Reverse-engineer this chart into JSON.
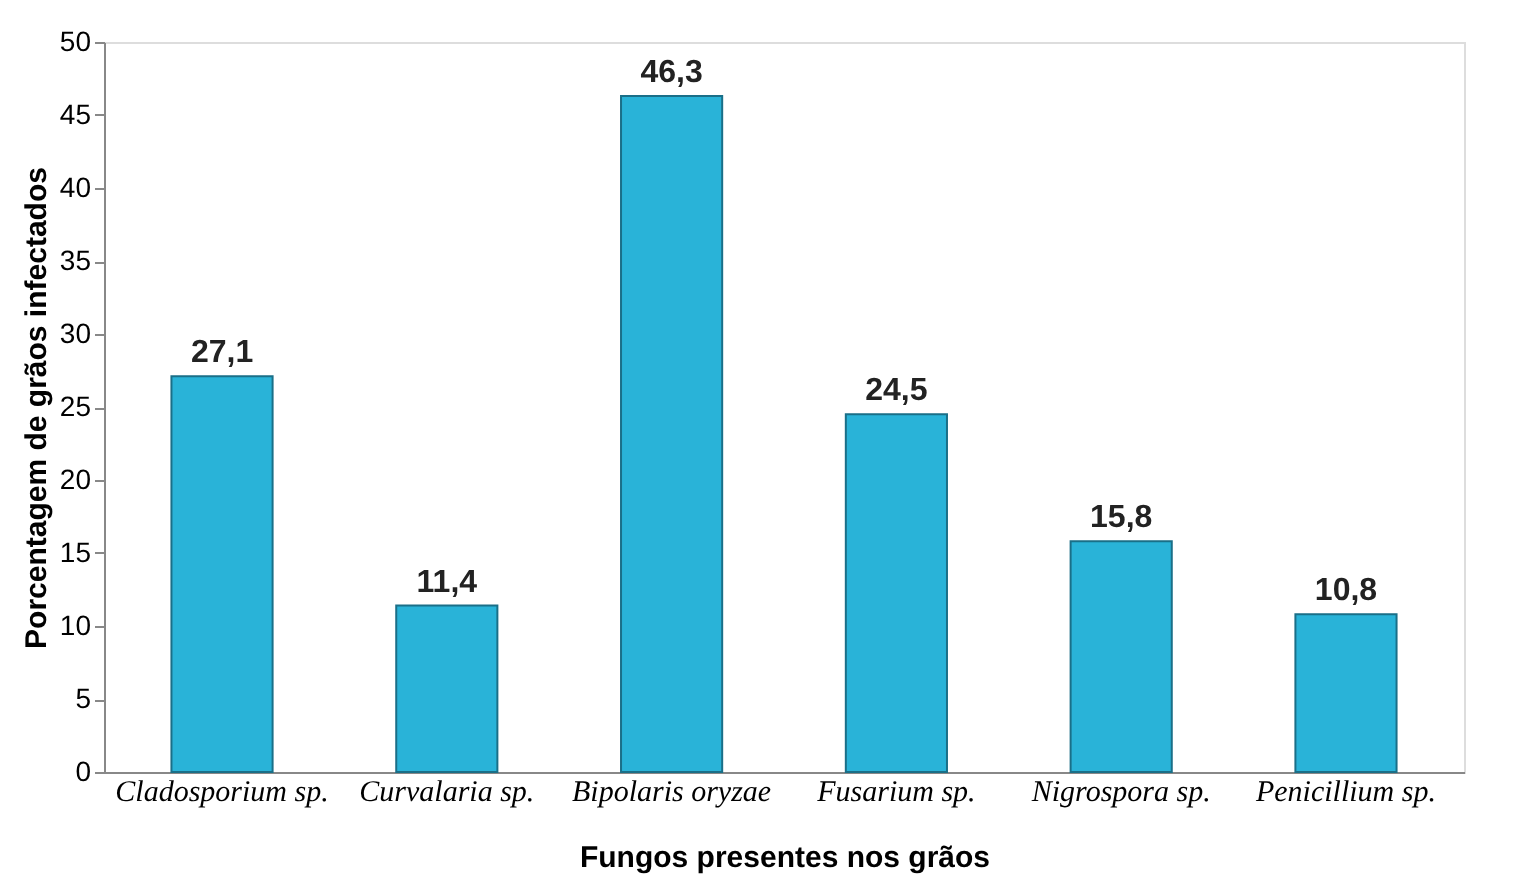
{
  "chart_data": {
    "type": "bar",
    "xlabel": "Fungos presentes nos grãos",
    "ylabel": "Porcentagem de grãos infectados",
    "categories": [
      "Cladosporium sp.",
      "Curvalaria sp.",
      "Bipolaris oryzae",
      "Fusarium sp.",
      "Nigrospora sp.",
      "Penicillium sp."
    ],
    "values": [
      27.1,
      11.4,
      46.3,
      24.5,
      15.8,
      10.8
    ],
    "value_labels": [
      "27,1",
      "11,4",
      "46,3",
      "24,5",
      "15,8",
      "10,8"
    ],
    "color": "#29b3d8",
    "ylim": [
      0,
      50
    ],
    "yticks": [
      0,
      5,
      10,
      15,
      20,
      25,
      30,
      35,
      40,
      45,
      50
    ],
    "grid": false
  }
}
